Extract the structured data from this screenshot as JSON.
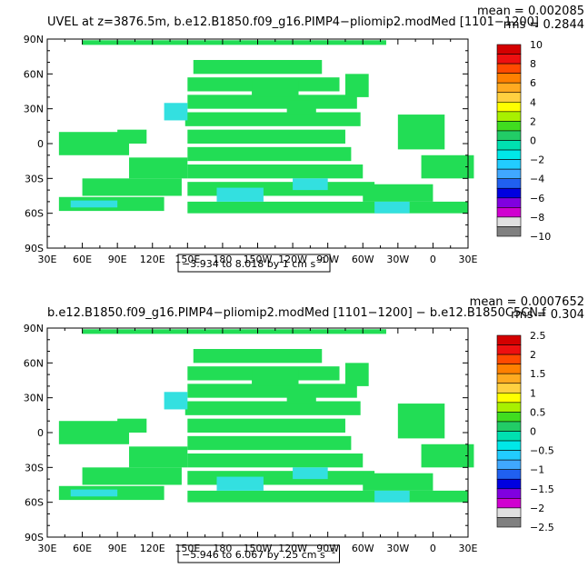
{
  "colors": {
    "land": "#ffffff",
    "frame": "#000000",
    "main_field": "#22dd55",
    "secondary_field": "#33e0e0"
  },
  "chart_data": [
    {
      "type": "heatmap",
      "title": "UVEL at z=3876.5m, b.e12.B1850.f09_g16.PIMP4−pliomip2.modMed [1101−1200]",
      "stats": {
        "mean": "mean = 0.002085",
        "rms": "rms = 0.2844"
      },
      "x_ticks": [
        "30E",
        "60E",
        "90E",
        "120E",
        "150E",
        "180",
        "150W",
        "120W",
        "90W",
        "60W",
        "30W",
        "0",
        "30E"
      ],
      "y_ticks": [
        "90N",
        "60N",
        "30N",
        "0",
        "30S",
        "60S",
        "90S"
      ],
      "xlim": [
        30,
        390
      ],
      "ylim": [
        -90,
        90
      ],
      "range_label": "−3.934 to 8.018 by 1 cm s",
      "range_exp": "−1",
      "colorbar": {
        "labels": [
          "10",
          "8",
          "6",
          "4",
          "2",
          "0",
          "−2",
          "−4",
          "−6",
          "−8",
          "−10"
        ],
        "colors": [
          "#d40000",
          "#ee1010",
          "#ff4a00",
          "#ff8000",
          "#ffaa20",
          "#ffd040",
          "#ffff00",
          "#a8f000",
          "#40dd20",
          "#22cc66",
          "#00e0b0",
          "#00e8e8",
          "#22ccff",
          "#40a8ff",
          "#2060f0",
          "#0000e0",
          "#8000e0",
          "#d000d0",
          "#e0e0e0",
          "#808080"
        ]
      },
      "patches": [
        [
          155,
          60,
          110,
          12
        ],
        [
          150,
          45,
          130,
          12
        ],
        [
          150,
          30,
          145,
          12
        ],
        [
          148,
          15,
          150,
          12
        ],
        [
          150,
          0,
          135,
          12
        ],
        [
          150,
          -15,
          140,
          12
        ],
        [
          150,
          -30,
          150,
          12
        ],
        [
          150,
          -45,
          160,
          12
        ],
        [
          150,
          -60,
          180,
          10
        ],
        [
          40,
          -10,
          60,
          20
        ],
        [
          90,
          0,
          25,
          12
        ],
        [
          100,
          -30,
          50,
          18
        ],
        [
          60,
          -45,
          85,
          15
        ],
        [
          40,
          -58,
          90,
          12
        ],
        [
          205,
          40,
          40,
          14
        ],
        [
          235,
          25,
          25,
          12
        ],
        [
          285,
          40,
          20,
          20
        ],
        [
          330,
          -5,
          40,
          30
        ],
        [
          350,
          -30,
          45,
          20
        ],
        [
          300,
          -50,
          60,
          15
        ],
        [
          330,
          -60,
          60,
          10
        ],
        [
          60,
          85,
          260,
          4
        ]
      ],
      "secondary_patches": [
        [
          175,
          -50,
          40,
          12
        ],
        [
          240,
          -40,
          30,
          10
        ],
        [
          310,
          -60,
          30,
          10
        ],
        [
          50,
          -55,
          40,
          6
        ],
        [
          130,
          20,
          20,
          15
        ]
      ]
    },
    {
      "type": "heatmap",
      "title": "b.e12.B1850.f09_g16.PIMP4−pliomip2.modMed [1101−1200] − b.e12.B1850C5CN.f",
      "stats": {
        "mean": "mean = 0.0007652",
        "rms": "rms = 0.304"
      },
      "x_ticks": [
        "30E",
        "60E",
        "90E",
        "120E",
        "150E",
        "180",
        "150W",
        "120W",
        "90W",
        "60W",
        "30W",
        "0",
        "30E"
      ],
      "y_ticks": [
        "90N",
        "60N",
        "30N",
        "0",
        "30S",
        "60S",
        "90S"
      ],
      "xlim": [
        30,
        390
      ],
      "ylim": [
        -90,
        90
      ],
      "range_label": "−5.946 to 6.067 by .25 cm s",
      "range_exp": "−1",
      "colorbar": {
        "labels": [
          "2.5",
          "2",
          "1.5",
          "1",
          "0.5",
          "0",
          "−0.5",
          "−1",
          "−1.5",
          "−2",
          "−2.5"
        ],
        "colors": [
          "#d40000",
          "#ee1010",
          "#ff4a00",
          "#ff8000",
          "#ffaa20",
          "#ffd040",
          "#ffff00",
          "#a8f000",
          "#40dd20",
          "#22cc66",
          "#00e0b0",
          "#00e8e8",
          "#22ccff",
          "#40a8ff",
          "#2060f0",
          "#0000e0",
          "#8000e0",
          "#d000d0",
          "#e0e0e0",
          "#808080"
        ]
      },
      "patches": [
        [
          155,
          60,
          110,
          12
        ],
        [
          150,
          45,
          130,
          12
        ],
        [
          150,
          30,
          145,
          12
        ],
        [
          148,
          15,
          150,
          12
        ],
        [
          150,
          0,
          135,
          12
        ],
        [
          150,
          -15,
          140,
          12
        ],
        [
          150,
          -30,
          150,
          12
        ],
        [
          150,
          -45,
          160,
          12
        ],
        [
          150,
          -60,
          180,
          10
        ],
        [
          40,
          -10,
          60,
          20
        ],
        [
          90,
          0,
          25,
          12
        ],
        [
          100,
          -30,
          50,
          18
        ],
        [
          60,
          -45,
          85,
          15
        ],
        [
          40,
          -58,
          90,
          12
        ],
        [
          205,
          40,
          40,
          14
        ],
        [
          235,
          25,
          25,
          12
        ],
        [
          285,
          40,
          20,
          20
        ],
        [
          330,
          -5,
          40,
          30
        ],
        [
          350,
          -30,
          45,
          20
        ],
        [
          300,
          -50,
          60,
          15
        ],
        [
          330,
          -60,
          60,
          10
        ],
        [
          60,
          85,
          260,
          4
        ]
      ],
      "secondary_patches": [
        [
          175,
          -50,
          40,
          12
        ],
        [
          240,
          -40,
          30,
          10
        ],
        [
          310,
          -60,
          30,
          10
        ],
        [
          50,
          -55,
          40,
          6
        ],
        [
          130,
          20,
          20,
          15
        ]
      ]
    }
  ]
}
